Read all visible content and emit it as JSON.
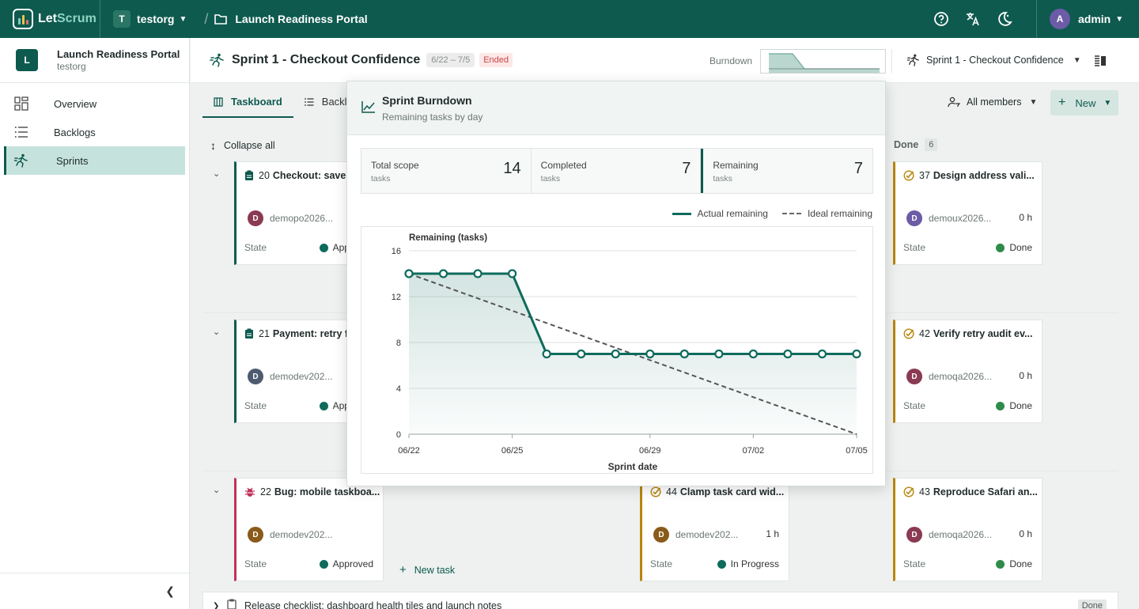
{
  "app": {
    "name_a": "Let",
    "name_b": "Scrum"
  },
  "org": {
    "badge": "T",
    "name": "testorg"
  },
  "breadcrumb": {
    "project": "Launch Readiness Portal"
  },
  "user": {
    "initial": "A",
    "name": "admin"
  },
  "sidebar": {
    "project_initial": "L",
    "project_title": "Launch Readiness Portal",
    "project_org": "testorg",
    "items": [
      {
        "label": "Overview",
        "icon": "grid-icon"
      },
      {
        "label": "Backlogs",
        "icon": "list-icon"
      },
      {
        "label": "Sprints",
        "icon": "runner-icon"
      }
    ]
  },
  "header": {
    "sprint_title": "Sprint 1 - Checkout Confidence",
    "dates": "6/22 – 7/5",
    "status": "Ended",
    "burndown_label": "Burndown",
    "sprint_select": "Sprint 1 - Checkout Confidence"
  },
  "tabs": [
    {
      "label": "Taskboard"
    },
    {
      "label": "Backlog"
    }
  ],
  "toolbar": {
    "members": "All members",
    "new_label": "New"
  },
  "board": {
    "collapse_all": "Collapse all",
    "done_column": "Done",
    "done_count": "6",
    "state_label": "State",
    "new_task": "New task",
    "cards": [
      {
        "num": "20",
        "title": "Checkout: save",
        "user": "demopo2026...",
        "initial": "D",
        "avatar": "#8a3a52",
        "hours": "",
        "state": "Approved",
        "dot": "#0e6b5c"
      },
      {
        "num": "37",
        "title": "Design address vali...",
        "user": "demoux2026...",
        "initial": "D",
        "avatar": "#6c5ba6",
        "hours": "0 h",
        "state": "Done",
        "dot": "#2e8b4a"
      },
      {
        "num": "21",
        "title": "Payment: retry f",
        "user": "demodev202...",
        "initial": "D",
        "avatar": "#4d5a70",
        "hours": "",
        "state": "Approved",
        "dot": "#0e6b5c"
      },
      {
        "num": "42",
        "title": "Verify retry audit ev...",
        "user": "demoqa2026...",
        "initial": "D",
        "avatar": "#8a3a52",
        "hours": "0 h",
        "state": "Done",
        "dot": "#2e8b4a"
      },
      {
        "num": "22",
        "title": "Bug: mobile taskboa...",
        "user": "demodev202...",
        "initial": "D",
        "avatar": "#8a5a1a",
        "hours": "",
        "state": "Approved",
        "dot": "#0e6b5c"
      },
      {
        "num": "44",
        "title": "Clamp task card wid...",
        "user": "demodev202...",
        "initial": "D",
        "avatar": "#8a5a1a",
        "hours": "1 h",
        "state": "In Progress",
        "dot": "#0e6b5c"
      },
      {
        "num": "43",
        "title": "Reproduce Safari an...",
        "user": "demoqa2026...",
        "initial": "D",
        "avatar": "#8a3a52",
        "hours": "0 h",
        "state": "Done",
        "dot": "#2e8b4a"
      }
    ],
    "bottom_row": {
      "title": "Release checklist: dashboard health tiles and launch notes",
      "state": "Done"
    }
  },
  "popover": {
    "title": "Sprint Burndown",
    "subtitle": "Remaining tasks by day",
    "stats": [
      {
        "label": "Total scope",
        "unit": "tasks",
        "value": "14"
      },
      {
        "label": "Completed",
        "unit": "tasks",
        "value": "7"
      },
      {
        "label": "Remaining",
        "unit": "tasks",
        "value": "7"
      }
    ],
    "legend_actual": "Actual remaining",
    "legend_ideal": "Ideal remaining"
  },
  "chart_data": {
    "type": "line",
    "title": "",
    "xlabel": "Sprint date",
    "ylabel": "Remaining (tasks)",
    "ylim": [
      0,
      16
    ],
    "yticks": [
      0,
      4,
      8,
      12,
      16
    ],
    "x_tick_labels": [
      "06/22",
      "06/25",
      "06/29",
      "07/02",
      "07/05"
    ],
    "x": [
      "06/22",
      "06/23",
      "06/24",
      "06/25",
      "06/26",
      "06/27",
      "06/28",
      "06/29",
      "06/30",
      "07/01",
      "07/02",
      "07/03",
      "07/04",
      "07/05"
    ],
    "series": [
      {
        "name": "Actual remaining",
        "values": [
          14,
          14,
          14,
          14,
          7,
          7,
          7,
          7,
          7,
          7,
          7,
          7,
          7,
          7
        ],
        "color": "#0e6b5c"
      },
      {
        "name": "Ideal remaining",
        "values": [
          14,
          0
        ],
        "x": [
          "06/22",
          "07/05"
        ],
        "color": "#555555",
        "dashed": true
      }
    ],
    "grid": true,
    "legend": "top-right"
  }
}
